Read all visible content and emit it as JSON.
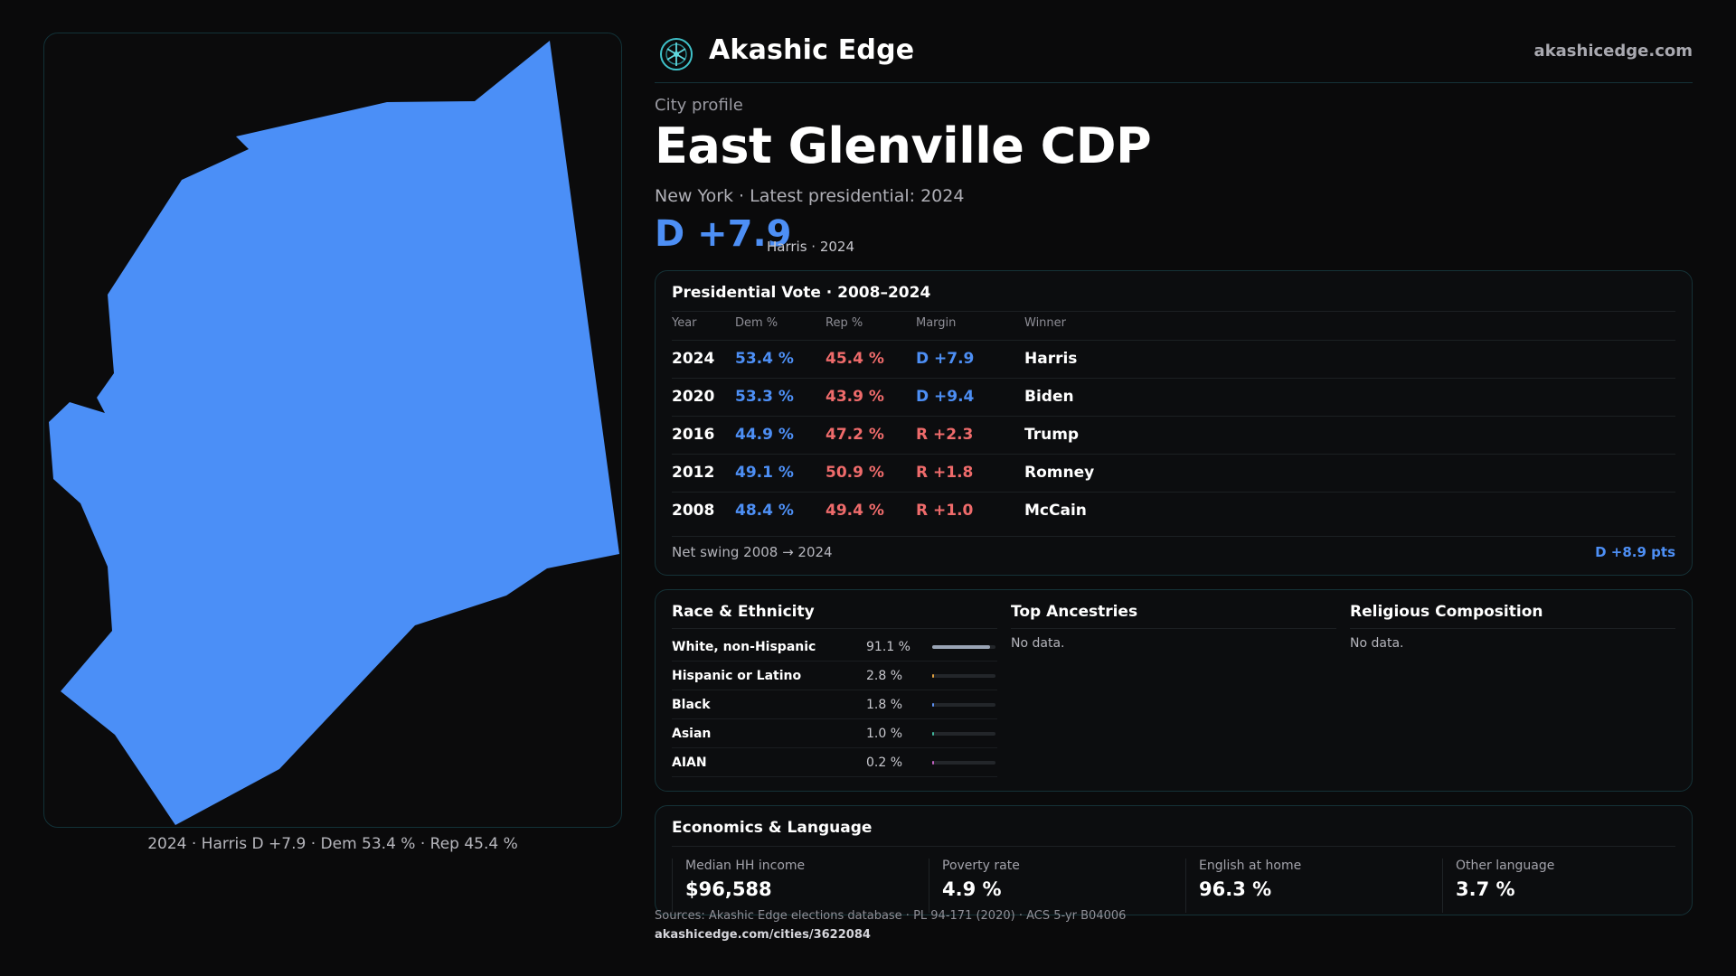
{
  "brand": {
    "name": "Akashic Edge",
    "domain": "akashicedge.com"
  },
  "profile": {
    "eyebrow": "City profile",
    "city": "East Glenville CDP",
    "subtitle": "New York  · Latest presidential: 2024",
    "margin": "D +7.9",
    "margin_note": "Harris · 2024"
  },
  "map": {
    "caption": "2024 · Harris D +7.9 · Dem 53.4 % · Rep 45.4 %",
    "fill_color": "#4b8ff7"
  },
  "presidential": {
    "title": "Presidential Vote · 2008–2024",
    "headers": {
      "year": "Year",
      "dem": "Dem %",
      "rep": "Rep %",
      "margin": "Margin",
      "winner": "Winner"
    },
    "rows": [
      {
        "year": "2024",
        "dem": "53.4 %",
        "rep": "45.4 %",
        "margin": "D +7.9",
        "party": "D",
        "winner": "Harris"
      },
      {
        "year": "2020",
        "dem": "53.3 %",
        "rep": "43.9 %",
        "margin": "D +9.4",
        "party": "D",
        "winner": "Biden"
      },
      {
        "year": "2016",
        "dem": "44.9 %",
        "rep": "47.2 %",
        "margin": "R +2.3",
        "party": "R",
        "winner": "Trump"
      },
      {
        "year": "2012",
        "dem": "49.1 %",
        "rep": "50.9 %",
        "margin": "R +1.8",
        "party": "R",
        "winner": "Romney"
      },
      {
        "year": "2008",
        "dem": "48.4 %",
        "rep": "49.4 %",
        "margin": "R +1.0",
        "party": "R",
        "winner": "McCain"
      }
    ],
    "swing_label": "Net swing 2008 → 2024",
    "swing_value": "D +8.9 pts"
  },
  "race": {
    "title": "Race & Ethnicity",
    "rows": [
      {
        "label": "White, non-Hispanic",
        "value": "91.1 %",
        "pct": 91.1,
        "color": "#9aa4b5"
      },
      {
        "label": "Hispanic or Latino",
        "value": "2.8 %",
        "pct": 2.8,
        "color": "#e0a040"
      },
      {
        "label": "Black",
        "value": "1.8 %",
        "pct": 1.8,
        "color": "#5b8ff0"
      },
      {
        "label": "Asian",
        "value": "1.0 %",
        "pct": 1.0,
        "color": "#3fb59b"
      },
      {
        "label": "AIAN",
        "value": "0.2 %",
        "pct": 0.2,
        "color": "#c060c0"
      }
    ]
  },
  "ancestries": {
    "title": "Top Ancestries",
    "empty": "No data."
  },
  "religion": {
    "title": "Religious Composition",
    "empty": "No data."
  },
  "economics": {
    "title": "Economics & Language",
    "stats": [
      {
        "label": "Median HH income",
        "value": "$96,588"
      },
      {
        "label": "Poverty rate",
        "value": "4.9 %"
      },
      {
        "label": "English at home",
        "value": "96.3 %"
      },
      {
        "label": "Other language",
        "value": "3.7 %"
      }
    ]
  },
  "footer": {
    "sources": "Sources: Akashic Edge elections database · PL 94-171 (2020) · ACS 5-yr B04006",
    "url": "akashicedge.com/cities/3622084"
  }
}
